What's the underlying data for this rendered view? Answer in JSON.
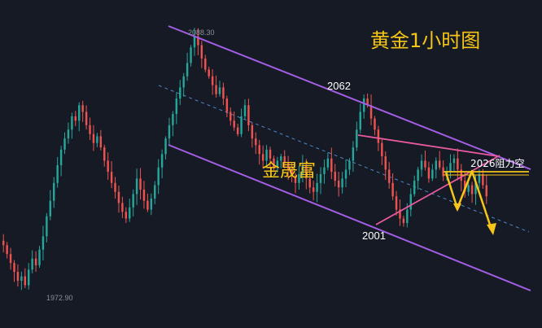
{
  "chart_data": {
    "type": "candlestick",
    "title": "黄金1小时图",
    "watermark": "金晟富",
    "colors": {
      "background": "#161a25",
      "up": "#26a69a",
      "down": "#ef5350",
      "channel": "#a45ee5",
      "midline": "#4f87c9",
      "triangle": "#e85aa0",
      "resistance": "#f5c518",
      "arrow": "#f5c518",
      "title": "#f5c518",
      "text": "#ffffff",
      "minor_text": "#8a8f98"
    },
    "y_range": [
      1965,
      2095
    ],
    "extreme_labels": {
      "high": "2088.30",
      "low": "1972.90"
    },
    "point_labels": [
      "2062",
      "2001"
    ],
    "resistance": {
      "label": "2026阻力空",
      "price": 2026
    },
    "closes": [
      1992,
      1988,
      1984,
      1980,
      1976,
      1978,
      1974,
      1981,
      1986,
      1983,
      1990,
      1996,
      2005,
      2012,
      2020,
      2028,
      2035,
      2040,
      2044,
      2050,
      2048,
      2055,
      2052,
      2046,
      2042,
      2038,
      2041,
      2036,
      2030,
      2025,
      2020,
      2016,
      2011,
      2007,
      2004,
      2009,
      2015,
      2022,
      2017,
      2012,
      2008,
      2013,
      2019,
      2027,
      2033,
      2040,
      2046,
      2051,
      2058,
      2063,
      2068,
      2074,
      2081,
      2086,
      2082,
      2076,
      2071,
      2068,
      2064,
      2060,
      2063,
      2058,
      2052,
      2048,
      2045,
      2042,
      2050,
      2055,
      2046,
      2040,
      2037,
      2033,
      2030,
      2035,
      2031,
      2027,
      2030,
      2032,
      2029,
      2026,
      2023,
      2020,
      2024,
      2028,
      2022,
      2018,
      2016,
      2020,
      2024,
      2027,
      2031,
      2025,
      2021,
      2018,
      2022,
      2026,
      2030,
      2036,
      2044,
      2052,
      2058,
      2055,
      2049,
      2044,
      2038,
      2032,
      2026,
      2020,
      2014,
      2008,
      2004,
      2002,
      2008,
      2015,
      2021,
      2026,
      2030,
      2027,
      2022,
      2026,
      2030,
      2027,
      2023,
      2025,
      2029,
      2031,
      2026,
      2021,
      2016,
      2019,
      2015,
      2020,
      2024,
      2019,
      2014
    ]
  }
}
